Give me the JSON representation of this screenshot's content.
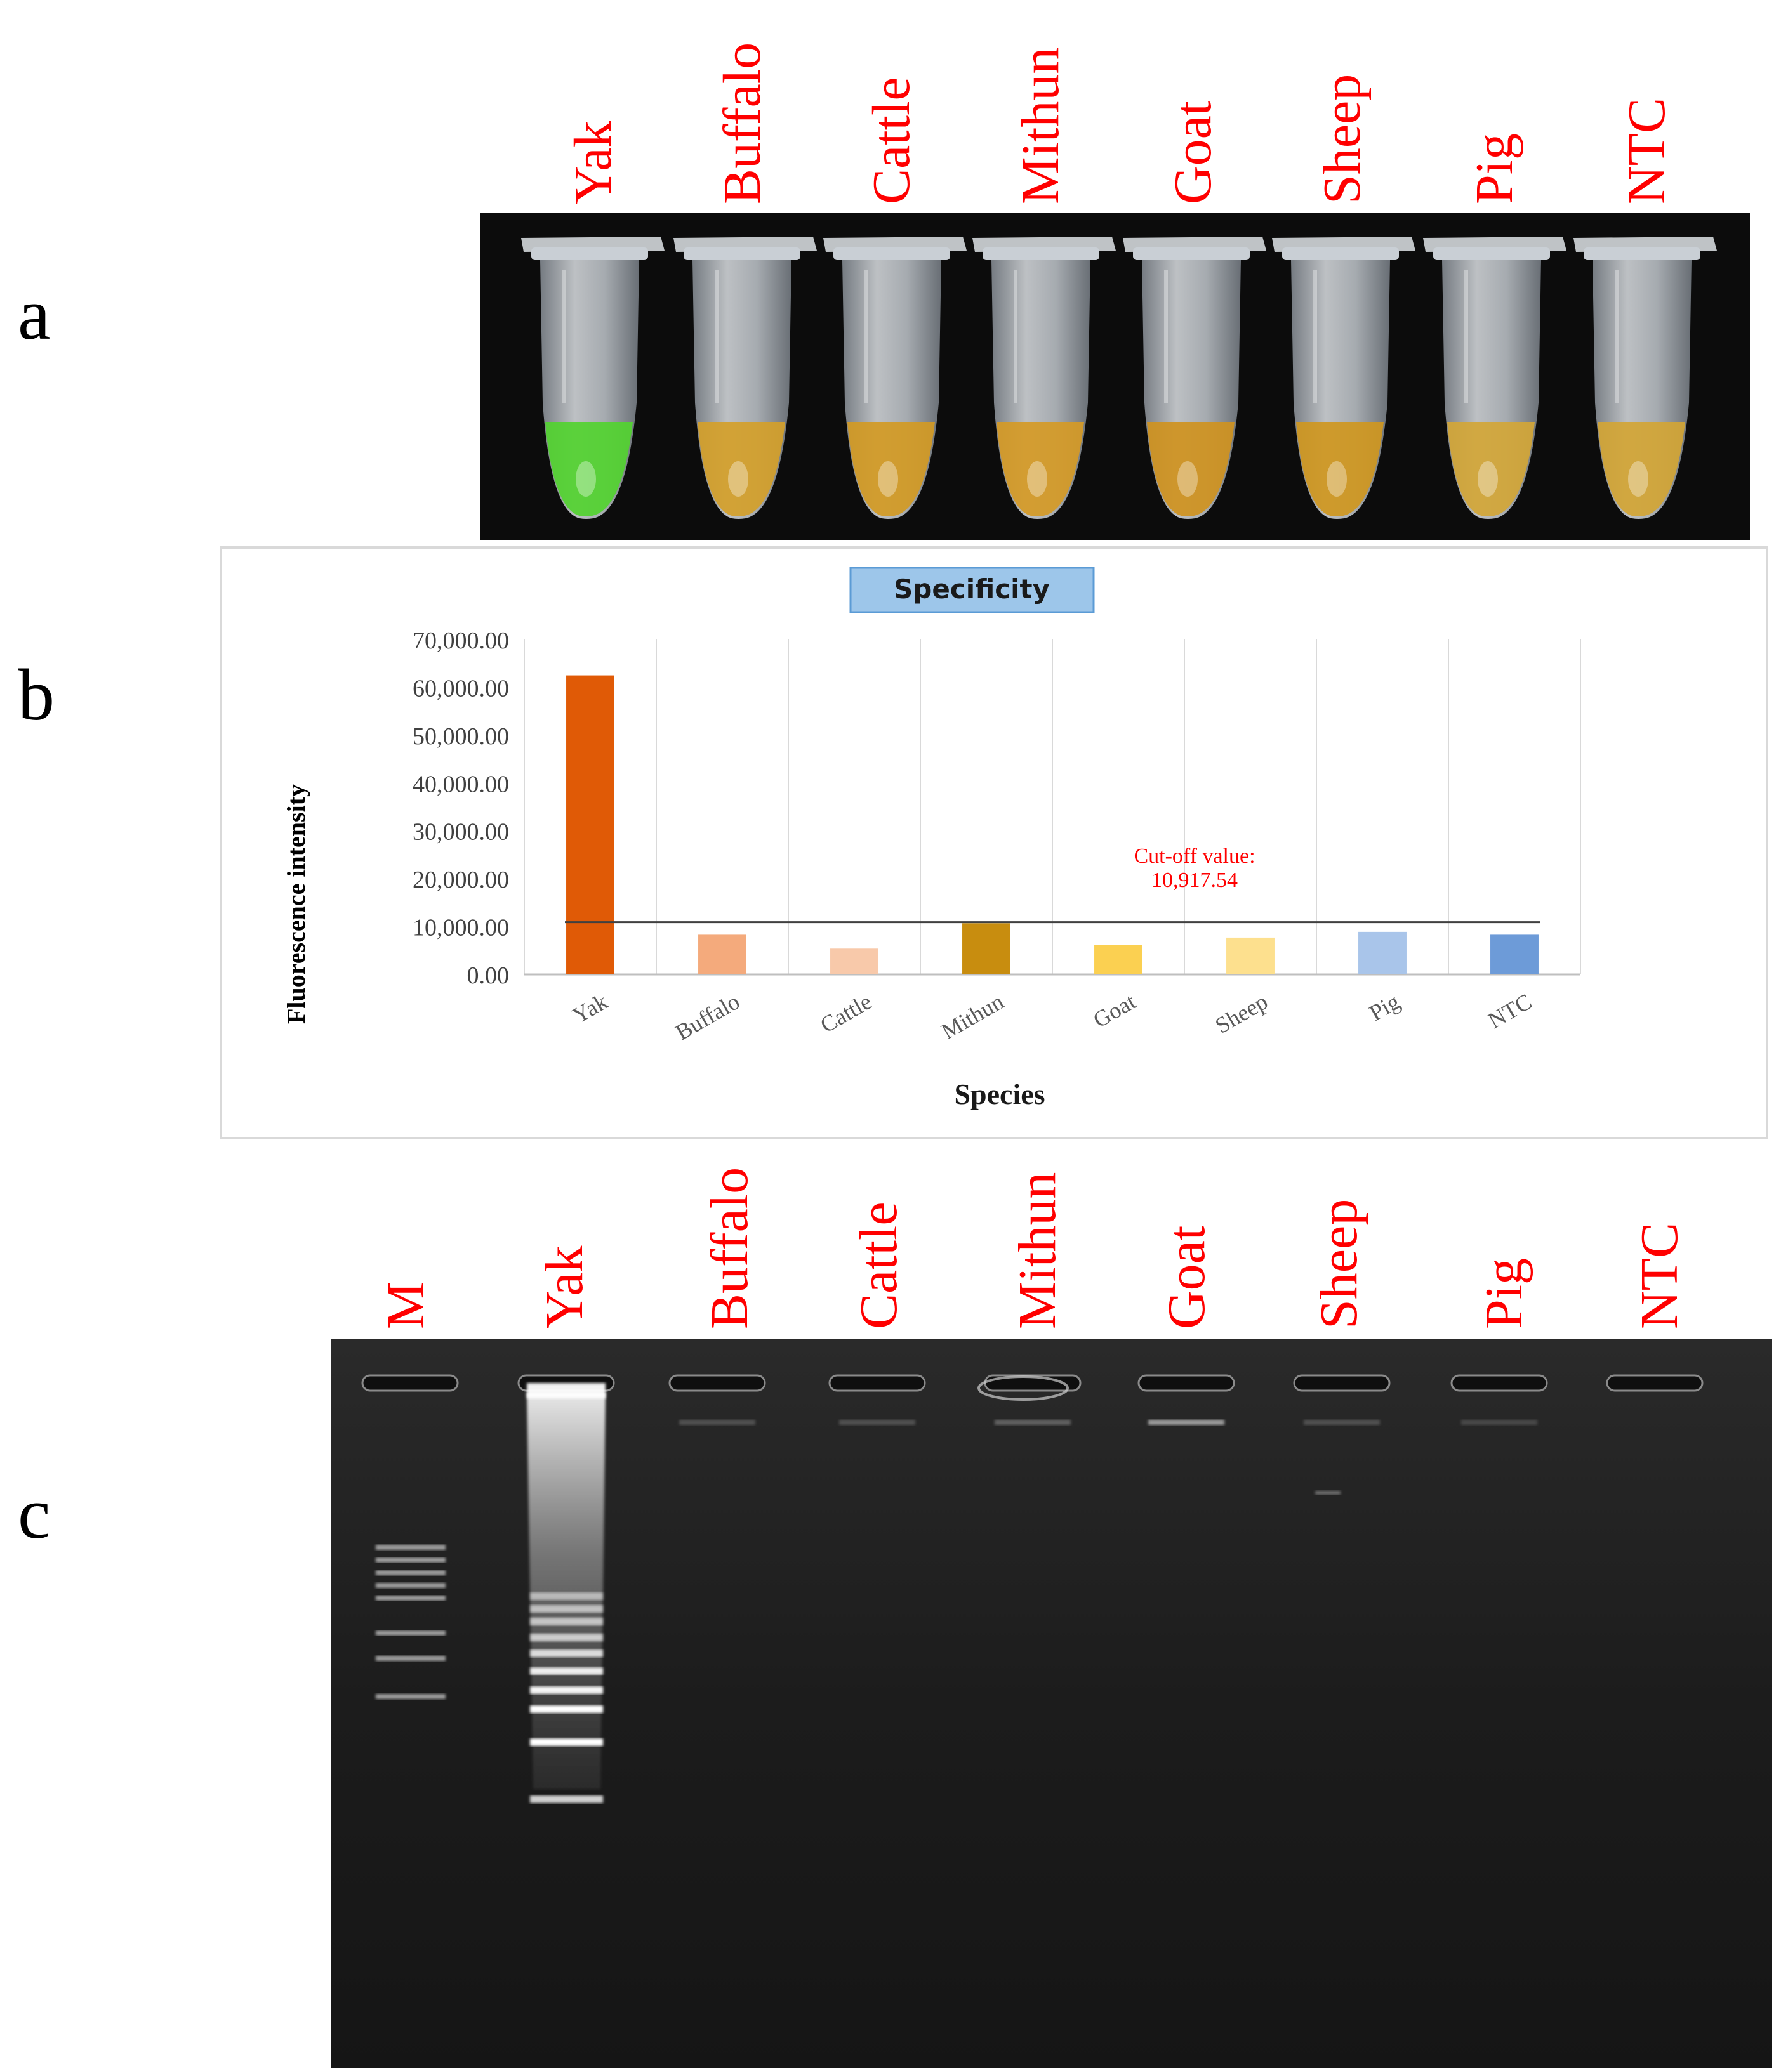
{
  "panel_labels": {
    "a": "a",
    "b": "b",
    "c": "c"
  },
  "panel_a": {
    "lane_labels": [
      "Yak",
      "Buffalo",
      "Cattle",
      "Mithun",
      "Goat",
      "Sheep",
      "Pig",
      "NTC"
    ],
    "tube_liquid_colors": [
      "#52d330",
      "#d4a02a",
      "#d39a24",
      "#d59a26",
      "#cf9320",
      "#cf971f",
      "#d3a637",
      "#d3a535"
    ]
  },
  "chart_data": {
    "type": "bar",
    "title": "Specificity",
    "xlabel": "Species",
    "ylabel": "Fluorescence intensity",
    "categories": [
      "Yak",
      "Buffalo",
      "Cattle",
      "Mithun",
      "Goat",
      "Sheep",
      "Pig",
      "NTC"
    ],
    "values": [
      62500,
      8300,
      5400,
      10700,
      6200,
      7700,
      8900,
      8300
    ],
    "bar_colors": [
      "#e05a06",
      "#f4aa7c",
      "#f8c9aa",
      "#c88d0f",
      "#fbd051",
      "#fde08e",
      "#a9c5ea",
      "#6d9bd8"
    ],
    "ylim": [
      0,
      70000
    ],
    "yticks": [
      "0.00",
      "10,000.00",
      "20,000.00",
      "30,000.00",
      "40,000.00",
      "50,000.00",
      "60,000.00",
      "70,000.00"
    ],
    "ytick_values": [
      0,
      10000,
      20000,
      30000,
      40000,
      50000,
      60000,
      70000
    ],
    "grid": "vertical",
    "cutoff": {
      "value": 10917.54,
      "label_line1": "Cut-off value:",
      "label_line2": "10,917.54",
      "color": "#ff0000"
    }
  },
  "panel_c": {
    "lane_labels": [
      "M",
      "Yak",
      "Buffalo",
      "Cattle",
      "Mithun",
      "Goat",
      "Sheep",
      "Pig",
      "NTC"
    ]
  }
}
